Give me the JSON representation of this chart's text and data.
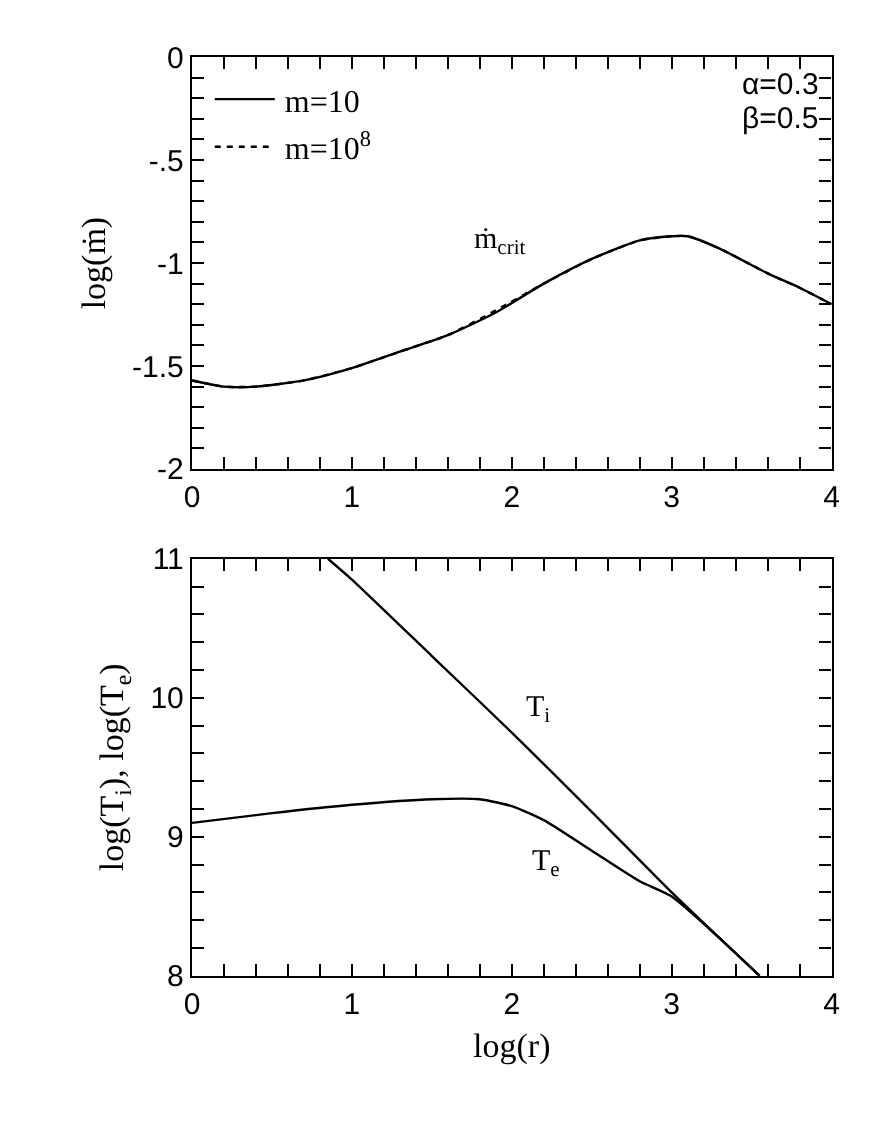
{
  "chart_data": [
    {
      "type": "line",
      "ylabel": "log(ṁ)",
      "legend": "top left",
      "annotations": [
        "α=0.3",
        "β=0.5",
        "ṁ$_{crit}$"
      ],
      "xlim": [
        0,
        4
      ],
      "ylim": [
        -2,
        0
      ],
      "xticks": [
        0,
        {
          "value": 0.2,
          "label": null
        },
        {
          "value": 0.4,
          "label": null
        },
        {
          "value": 0.6,
          "label": null
        },
        {
          "value": 0.8,
          "label": null
        },
        1,
        {
          "value": 1.2,
          "label": null
        },
        {
          "value": 1.4,
          "label": null
        },
        {
          "value": 1.6,
          "label": null
        },
        {
          "value": 1.8,
          "label": null
        },
        2,
        {
          "value": 2.2,
          "label": null
        },
        {
          "value": 2.4,
          "label": null
        },
        {
          "value": 2.6,
          "label": null
        },
        {
          "value": 2.8,
          "label": null
        },
        3,
        {
          "value": 3.2,
          "label": null
        },
        {
          "value": 3.4,
          "label": null
        },
        {
          "value": 3.6,
          "label": null
        },
        {
          "value": 3.8,
          "label": null
        },
        4
      ],
      "yticks": [
        -2,
        {
          "value": -1.9,
          "label": null
        },
        {
          "value": -1.8,
          "label": null
        },
        {
          "value": -1.7,
          "label": null
        },
        {
          "value": -1.6,
          "label": null
        },
        -1.5,
        {
          "value": -1.4,
          "label": null
        },
        {
          "value": -1.3,
          "label": null
        },
        {
          "value": -1.2,
          "label": null
        },
        {
          "value": -1.1,
          "label": null
        },
        -1,
        {
          "value": -0.9,
          "label": null
        },
        {
          "value": -0.8,
          "label": null
        },
        {
          "value": -0.7,
          "label": null
        },
        {
          "value": -0.6,
          "label": null
        },
        {
          "value": -0.5,
          "label": "-.5"
        },
        {
          "value": -0.4,
          "label": null
        },
        {
          "value": -0.3,
          "label": null
        },
        {
          "value": -0.2,
          "label": null
        },
        {
          "value": -0.1,
          "label": null
        },
        0
      ],
      "x": [
        0,
        0.2,
        0.4,
        0.7,
        1.0,
        1.3,
        1.6,
        1.9,
        2.2,
        2.5,
        2.8,
        3.0,
        3.1,
        3.3,
        3.6,
        3.8,
        4.0
      ],
      "series": [
        {
          "name": "m=10",
          "color": "#000000",
          "line_style": "solid",
          "values": [
            -1.57,
            -1.6,
            -1.6,
            -1.57,
            -1.51,
            -1.43,
            -1.35,
            -1.24,
            -1.1,
            -0.98,
            -0.89,
            -0.87,
            -0.87,
            -0.93,
            -1.05,
            -1.12,
            -1.2
          ]
        },
        {
          "name": "m=10$^{8}$",
          "color": "#000000",
          "line_style": "dotted",
          "values": [
            -1.57,
            -1.6,
            -1.6,
            -1.57,
            -1.51,
            -1.43,
            -1.35,
            -1.23,
            -1.1,
            -0.98,
            -0.89,
            -0.87,
            -0.87,
            -0.93,
            -1.05,
            -1.12,
            -1.2
          ]
        }
      ]
    },
    {
      "type": "line",
      "xlabel": "log(r)",
      "ylabel": "log(T$_{i}$), log(T$_{e}$)",
      "legend": false,
      "annotations": [
        "T$_{i}$",
        "T$_{e}$"
      ],
      "xlim": [
        0,
        4
      ],
      "ylim": [
        8,
        11
      ],
      "xticks": [
        0,
        {
          "value": 0.2,
          "label": null
        },
        {
          "value": 0.4,
          "label": null
        },
        {
          "value": 0.6,
          "label": null
        },
        {
          "value": 0.8,
          "label": null
        },
        1,
        {
          "value": 1.2,
          "label": null
        },
        {
          "value": 1.4,
          "label": null
        },
        {
          "value": 1.6,
          "label": null
        },
        {
          "value": 1.8,
          "label": null
        },
        2,
        {
          "value": 2.2,
          "label": null
        },
        {
          "value": 2.4,
          "label": null
        },
        {
          "value": 2.6,
          "label": null
        },
        {
          "value": 2.8,
          "label": null
        },
        3,
        {
          "value": 3.2,
          "label": null
        },
        {
          "value": 3.4,
          "label": null
        },
        {
          "value": 3.6,
          "label": null
        },
        {
          "value": 3.8,
          "label": null
        },
        4
      ],
      "yticks": [
        8,
        {
          "value": 8.2,
          "label": null
        },
        {
          "value": 8.4,
          "label": null
        },
        {
          "value": 8.6,
          "label": null
        },
        {
          "value": 8.8,
          "label": null
        },
        9,
        {
          "value": 9.2,
          "label": null
        },
        {
          "value": 9.4,
          "label": null
        },
        {
          "value": 9.6,
          "label": null
        },
        {
          "value": 9.8,
          "label": null
        },
        10,
        {
          "value": 10.2,
          "label": null
        },
        {
          "value": 10.4,
          "label": null
        },
        {
          "value": 10.6,
          "label": null
        },
        {
          "value": 10.8,
          "label": null
        },
        11
      ],
      "series": [
        {
          "color": "#000000",
          "line_style": "solid",
          "x": [
            0.85,
            1.0,
            1.5,
            2.0,
            2.5,
            3.0,
            3.55
          ],
          "values": [
            11,
            10.85,
            10.3,
            9.75,
            9.18,
            8.6,
            8.0
          ]
        },
        {
          "color": "#000000",
          "line_style": "solid",
          "x": [
            0,
            0.5,
            1.0,
            1.5,
            1.8,
            2.0,
            2.2,
            2.5,
            2.8,
            3.0,
            3.3,
            3.55
          ],
          "values": [
            9.1,
            9.17,
            9.23,
            9.27,
            9.27,
            9.22,
            9.12,
            8.9,
            8.68,
            8.57,
            8.27,
            8.0
          ]
        }
      ]
    }
  ]
}
